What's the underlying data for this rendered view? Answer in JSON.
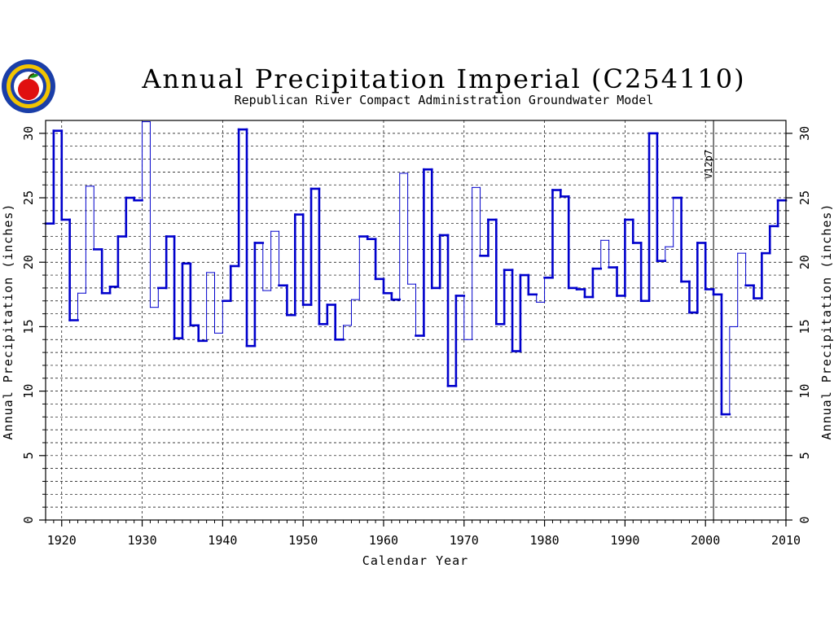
{
  "chart_data": {
    "type": "line",
    "style": "step",
    "title": "Annual Precipitation Imperial (C254110)",
    "subtitle": "Republican River Compact Administration Groundwater Model",
    "xlabel": "Calendar Year",
    "ylabel": "Annual Precipitation (inches)",
    "ylabel_right": "Annual Precipitation (inches)",
    "xlim": [
      1918,
      2010
    ],
    "ylim": [
      0,
      31
    ],
    "x_ticks": [
      1920,
      1930,
      1940,
      1950,
      1960,
      1970,
      1980,
      1990,
      2000,
      2010
    ],
    "y_ticks": [
      0,
      5,
      10,
      15,
      20,
      25,
      30
    ],
    "grid": true,
    "annotation": {
      "label": "V12p7",
      "x": 2001
    },
    "colors": {
      "measured": "#0000cc",
      "estimated": "#0000cc",
      "grid": "#000000",
      "annotation_line": "#000000"
    },
    "series": [
      {
        "x": [
          1918,
          1919,
          1920,
          1921,
          1922,
          1923,
          1924,
          1925,
          1926,
          1927,
          1928,
          1929,
          1930,
          1931,
          1932,
          1933,
          1934,
          1935,
          1936,
          1937,
          1938,
          1939,
          1940,
          1941,
          1942,
          1943,
          1944,
          1945,
          1946,
          1947,
          1948,
          1949,
          1950,
          1951,
          1952,
          1953,
          1954,
          1955,
          1956,
          1957,
          1958,
          1959,
          1960,
          1961,
          1962,
          1963,
          1964,
          1965,
          1966,
          1967,
          1968,
          1969,
          1970,
          1971,
          1972,
          1973,
          1974,
          1975,
          1976,
          1977,
          1978,
          1979,
          1980,
          1981,
          1982,
          1983,
          1984,
          1985,
          1986,
          1987,
          1988,
          1989,
          1990,
          1991,
          1992,
          1993,
          1994,
          1995,
          1996,
          1997,
          1998,
          1999,
          2000,
          2001,
          2002,
          2003,
          2004,
          2005,
          2006,
          2007,
          2008,
          2009
        ],
        "values": [
          23.0,
          30.2,
          23.3,
          15.5,
          17.6,
          25.9,
          21.0,
          17.6,
          18.1,
          22.0,
          25.0,
          24.8,
          30.9,
          16.5,
          18.0,
          22.0,
          14.1,
          19.9,
          15.1,
          13.9,
          19.2,
          14.5,
          17.0,
          19.7,
          30.3,
          13.5,
          21.5,
          17.8,
          22.4,
          18.2,
          15.9,
          23.7,
          16.7,
          25.7,
          15.2,
          16.7,
          14.0,
          15.1,
          17.1,
          22.0,
          21.8,
          18.7,
          17.6,
          17.1,
          26.9,
          18.3,
          14.3,
          27.2,
          18.0,
          22.1,
          10.4,
          17.4,
          14.0,
          25.8,
          20.5,
          23.3,
          15.2,
          19.4,
          13.1,
          19.0,
          17.5,
          16.9,
          18.8,
          25.6,
          25.1,
          18.0,
          17.9,
          17.3,
          19.5,
          21.7,
          19.6,
          17.4,
          23.3,
          21.5,
          17.0,
          30.0,
          20.1,
          21.2,
          25.0,
          18.5,
          16.1,
          21.5,
          17.9,
          17.5,
          8.2,
          15.0,
          20.7,
          18.2,
          17.2,
          20.7,
          22.8,
          24.8
        ],
        "measured": [
          1,
          1,
          1,
          1,
          0,
          0,
          1,
          1,
          1,
          1,
          1,
          1,
          0,
          0,
          1,
          1,
          1,
          1,
          1,
          1,
          0,
          0,
          1,
          1,
          1,
          1,
          1,
          0,
          0,
          1,
          1,
          1,
          1,
          1,
          1,
          1,
          1,
          0,
          0,
          1,
          1,
          1,
          1,
          1,
          0,
          0,
          1,
          1,
          1,
          1,
          1,
          1,
          0,
          0,
          1,
          1,
          1,
          1,
          1,
          1,
          1,
          0,
          1,
          1,
          1,
          1,
          1,
          1,
          1,
          0,
          1,
          1,
          1,
          1,
          1,
          1,
          1,
          0,
          1,
          1,
          1,
          1,
          1,
          1,
          1,
          0,
          0,
          1,
          1,
          1,
          1,
          1
        ]
      }
    ]
  }
}
